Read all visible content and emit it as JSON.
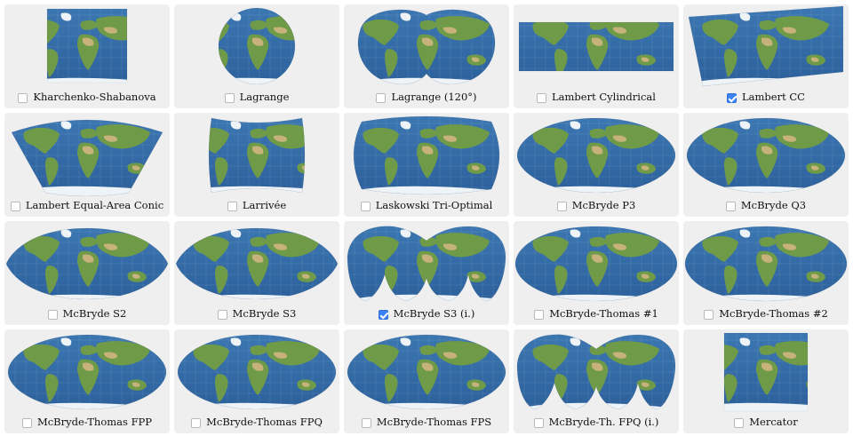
{
  "colors": {
    "ocean": "#2b5f9a",
    "ocean_light": "#3d78b3",
    "land": "#6f9b48",
    "desert": "#c6b27a",
    "ice": "#eef3f8",
    "tile_bg": "#efefef",
    "checkbox_checked": "#3b82f6"
  },
  "tiles": [
    {
      "label": "Kharchenko-Shabanova",
      "checked": false,
      "shape": "rect-small"
    },
    {
      "label": "Lagrange",
      "checked": false,
      "shape": "circle"
    },
    {
      "label": "Lagrange (120°)",
      "checked": false,
      "shape": "double-lobe"
    },
    {
      "label": "Lambert Cylindrical",
      "checked": false,
      "shape": "wide-rect"
    },
    {
      "label": "Lambert CC",
      "checked": true,
      "shape": "conic-tilted"
    },
    {
      "label": "Lambert Equal-Area Conic",
      "checked": false,
      "shape": "fan"
    },
    {
      "label": "Larrivée",
      "checked": false,
      "shape": "pillow"
    },
    {
      "label": "Laskowski Tri-Optimal",
      "checked": false,
      "shape": "rounded"
    },
    {
      "label": "McBryde P3",
      "checked": false,
      "shape": "oval"
    },
    {
      "label": "McBryde Q3",
      "checked": false,
      "shape": "oval"
    },
    {
      "label": "McBryde S2",
      "checked": false,
      "shape": "oval-pointed"
    },
    {
      "label": "McBryde S3",
      "checked": false,
      "shape": "oval-pointed"
    },
    {
      "label": "McBryde S3 (i.)",
      "checked": true,
      "shape": "interrupted"
    },
    {
      "label": "McBryde-Thomas #1",
      "checked": false,
      "shape": "oval-flat"
    },
    {
      "label": "McBryde-Thomas #2",
      "checked": false,
      "shape": "oval-flat"
    },
    {
      "label": "McBryde-Thomas FPP",
      "checked": false,
      "shape": "oval"
    },
    {
      "label": "McBryde-Thomas FPQ",
      "checked": false,
      "shape": "oval"
    },
    {
      "label": "McBryde-Thomas FPS",
      "checked": false,
      "shape": "oval"
    },
    {
      "label": "McBryde-Th. FPQ (i.)",
      "checked": false,
      "shape": "interrupted"
    },
    {
      "label": "Mercator",
      "checked": false,
      "shape": "tall-rect"
    }
  ]
}
